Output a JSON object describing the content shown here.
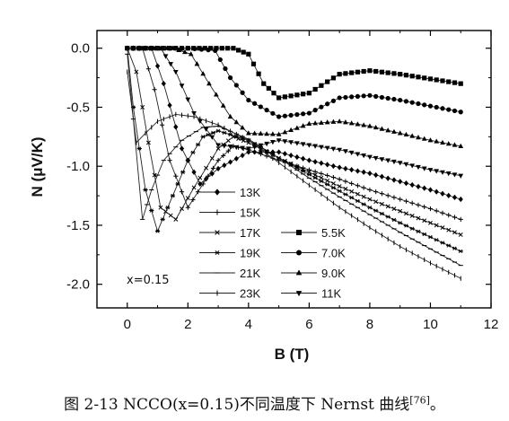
{
  "chart_data": {
    "type": "line",
    "title": "",
    "xlabel": "B (T)",
    "ylabel": "N (μV/K)",
    "xlim": [
      -1,
      12
    ],
    "ylim": [
      -2.2,
      0.15
    ],
    "xticks": [
      "0",
      "2",
      "4",
      "6",
      "8",
      "10",
      "12"
    ],
    "yticks": [
      "0.0",
      "-0.5",
      "-1.0",
      "-1.5",
      "-2.0"
    ],
    "grid": false,
    "legend_placement": "center-bottom",
    "annotation": "x=0.15",
    "series": [
      {
        "name": "5.5K",
        "marker": "square",
        "points": [
          [
            0,
            0
          ],
          [
            2,
            0
          ],
          [
            3.5,
            0
          ],
          [
            4,
            -0.05
          ],
          [
            4.5,
            -0.3
          ],
          [
            5,
            -0.42
          ],
          [
            6,
            -0.38
          ],
          [
            7,
            -0.22
          ],
          [
            8,
            -0.19
          ],
          [
            9,
            -0.22
          ],
          [
            10,
            -0.26
          ],
          [
            11,
            -0.3
          ]
        ]
      },
      {
        "name": "7.0K",
        "marker": "circle",
        "points": [
          [
            0,
            0
          ],
          [
            2,
            0
          ],
          [
            2.9,
            -0.02
          ],
          [
            3.4,
            -0.25
          ],
          [
            4,
            -0.44
          ],
          [
            5,
            -0.58
          ],
          [
            6,
            -0.55
          ],
          [
            7,
            -0.42
          ],
          [
            8,
            -0.4
          ],
          [
            9,
            -0.44
          ],
          [
            10,
            -0.49
          ],
          [
            11,
            -0.54
          ]
        ]
      },
      {
        "name": "9.0K",
        "marker": "triangle-up",
        "points": [
          [
            0,
            0
          ],
          [
            1.5,
            0
          ],
          [
            2.1,
            -0.05
          ],
          [
            2.7,
            -0.3
          ],
          [
            3.4,
            -0.58
          ],
          [
            4,
            -0.72
          ],
          [
            5,
            -0.73
          ],
          [
            6,
            -0.64
          ],
          [
            7,
            -0.62
          ],
          [
            8,
            -0.66
          ],
          [
            9,
            -0.72
          ],
          [
            10,
            -0.78
          ],
          [
            11,
            -0.83
          ]
        ]
      },
      {
        "name": "11K",
        "marker": "triangle-down",
        "points": [
          [
            0,
            0
          ],
          [
            1.1,
            0
          ],
          [
            1.6,
            -0.2
          ],
          [
            2.2,
            -0.55
          ],
          [
            3,
            -0.82
          ],
          [
            4,
            -0.85
          ],
          [
            5,
            -0.78
          ],
          [
            6,
            -0.82
          ],
          [
            7,
            -0.86
          ],
          [
            8,
            -0.92
          ],
          [
            9,
            -0.97
          ],
          [
            10,
            -1.03
          ],
          [
            11,
            -1.08
          ]
        ]
      },
      {
        "name": "13K",
        "marker": "diamond",
        "points": [
          [
            0,
            0
          ],
          [
            0.8,
            0
          ],
          [
            1.2,
            -0.3
          ],
          [
            1.8,
            -0.85
          ],
          [
            2.4,
            -1.15
          ],
          [
            3,
            -1.02
          ],
          [
            4,
            -0.88
          ],
          [
            5,
            -0.88
          ],
          [
            6,
            -0.95
          ],
          [
            7,
            -1.01
          ],
          [
            8,
            -1.06
          ],
          [
            9,
            -1.13
          ],
          [
            10,
            -1.2
          ],
          [
            11,
            -1.28
          ]
        ]
      },
      {
        "name": "15K",
        "marker": "plus",
        "points": [
          [
            0,
            0
          ],
          [
            0.5,
            0
          ],
          [
            0.9,
            -0.35
          ],
          [
            1.4,
            -0.95
          ],
          [
            2,
            -1.35
          ],
          [
            2.5,
            -1.15
          ],
          [
            3,
            -0.95
          ],
          [
            3.5,
            -0.83
          ],
          [
            4,
            -0.86
          ],
          [
            5,
            -0.95
          ],
          [
            6,
            -1.03
          ],
          [
            7,
            -1.11
          ],
          [
            8,
            -1.2
          ],
          [
            9,
            -1.28
          ],
          [
            10,
            -1.36
          ],
          [
            11,
            -1.45
          ]
        ]
      },
      {
        "name": "17K",
        "marker": "x",
        "points": [
          [
            0,
            0
          ],
          [
            0.3,
            -0.2
          ],
          [
            0.7,
            -0.8
          ],
          [
            1.1,
            -1.35
          ],
          [
            1.6,
            -1.45
          ],
          [
            2.2,
            -1.18
          ],
          [
            3,
            -0.85
          ],
          [
            3.5,
            -0.75
          ],
          [
            4,
            -0.8
          ],
          [
            5,
            -0.93
          ],
          [
            6,
            -1.05
          ],
          [
            7,
            -1.17
          ],
          [
            8,
            -1.28
          ],
          [
            9,
            -1.38
          ],
          [
            10,
            -1.48
          ],
          [
            11,
            -1.58
          ]
        ]
      },
      {
        "name": "19K",
        "marker": "star",
        "points": [
          [
            0,
            0
          ],
          [
            0.2,
            -0.5
          ],
          [
            0.6,
            -1.2
          ],
          [
            1,
            -1.55
          ],
          [
            1.5,
            -1.25
          ],
          [
            2,
            -0.95
          ],
          [
            2.5,
            -0.75
          ],
          [
            3,
            -0.7
          ],
          [
            4,
            -0.78
          ],
          [
            5,
            -0.93
          ],
          [
            6,
            -1.07
          ],
          [
            7,
            -1.21
          ],
          [
            8,
            -1.35
          ],
          [
            9,
            -1.48
          ],
          [
            10,
            -1.6
          ],
          [
            11,
            -1.72
          ]
        ]
      },
      {
        "name": "21K",
        "marker": "dash",
        "points": [
          [
            0,
            -0.05
          ],
          [
            0.2,
            -0.6
          ],
          [
            0.5,
            -1.45
          ],
          [
            0.8,
            -1.2
          ],
          [
            1.2,
            -0.95
          ],
          [
            1.8,
            -0.78
          ],
          [
            2.5,
            -0.67
          ],
          [
            3,
            -0.66
          ],
          [
            4,
            -0.77
          ],
          [
            5,
            -0.93
          ],
          [
            6,
            -1.1
          ],
          [
            7,
            -1.26
          ],
          [
            8,
            -1.41
          ],
          [
            9,
            -1.56
          ],
          [
            10,
            -1.7
          ],
          [
            11,
            -1.84
          ]
        ]
      },
      {
        "name": "23K",
        "marker": "vbar",
        "points": [
          [
            0,
            -0.2
          ],
          [
            0.3,
            -0.8
          ],
          [
            0.6,
            -0.72
          ],
          [
            1,
            -0.62
          ],
          [
            1.6,
            -0.56
          ],
          [
            2.2,
            -0.58
          ],
          [
            3,
            -0.65
          ],
          [
            4,
            -0.78
          ],
          [
            5,
            -0.97
          ],
          [
            6,
            -1.16
          ],
          [
            7,
            -1.35
          ],
          [
            8,
            -1.52
          ],
          [
            9,
            -1.68
          ],
          [
            10,
            -1.82
          ],
          [
            11,
            -1.95
          ]
        ]
      }
    ]
  },
  "caption": {
    "prefix": "图 2-13 NCCO(x=0.15)不同温度下 Nernst 曲线",
    "ref": "[76]",
    "suffix": "。"
  }
}
